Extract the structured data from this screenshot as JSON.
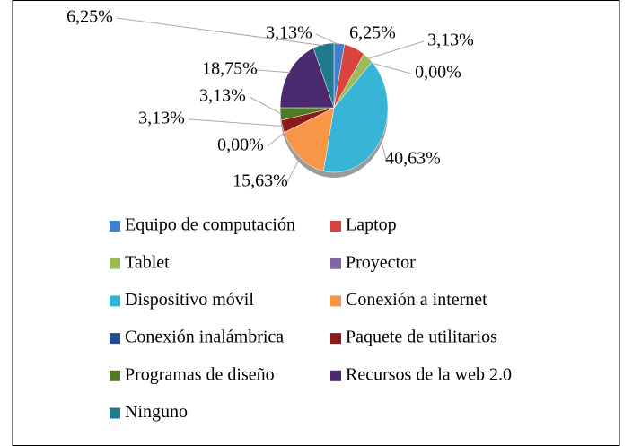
{
  "chart_data": {
    "type": "pie",
    "categories": [
      "Equipo de computación",
      "Laptop",
      "Tablet",
      "Proyector",
      "Dispositivo móvil",
      "Conexión a internet",
      "Conexión inalámbrica",
      "Paquete de utilitarios",
      "Programas de diseño",
      "Recursos de la web 2.0",
      "Ninguno"
    ],
    "values": [
      3.13,
      6.25,
      3.13,
      0.0,
      40.63,
      15.63,
      0.0,
      3.13,
      3.13,
      18.75,
      6.25
    ],
    "value_labels": [
      "3,13%",
      "6,25%",
      "3,13%",
      "0,00%",
      "40,63%",
      "15,63%",
      "0,00%",
      "3,13%",
      "3,13%",
      "18,75%",
      "6,25%"
    ],
    "colors": [
      "#3f7fd0",
      "#d9443f",
      "#9bbb59",
      "#8064a2",
      "#38b4d6",
      "#f79646",
      "#1f4e8c",
      "#8c1c1c",
      "#4f7a28",
      "#4b2a70",
      "#1f7a8c"
    ],
    "legend": "bottom"
  }
}
